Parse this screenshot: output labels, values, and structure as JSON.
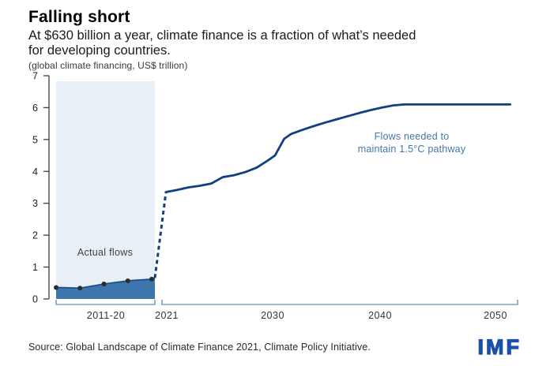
{
  "header": {
    "title": "Falling short",
    "subtitle": "At $630 billion a year, climate finance is a fraction of what’s needed for developing countries.",
    "units_note": "(global climate financing, US$ trillion)"
  },
  "labels": {
    "actual_flows": "Actual flows",
    "needed_line1": "Flows needed to",
    "needed_line2": "maintain 1.5°C pathway"
  },
  "footer": {
    "source": "Source: Global Landscape of Climate Finance 2021, Climate Policy Initiative.",
    "logo": "IMF"
  },
  "colors": {
    "band_blue": "#e9eff6",
    "fill_blue": "#3d75ad",
    "fill_edge": "#1f4f8a",
    "line_navy": "#12407f",
    "dot_dark": "#2d2d2d",
    "axis": "#3c3c3c",
    "tick_label": "#222222",
    "bracket_blue": "#78a2ca",
    "x_label": "#333333",
    "annotation_blue": "#4377ac",
    "logo_blue": "#1b50a8"
  },
  "chart_data": {
    "type": "line",
    "title": "Falling short",
    "ylabel": "global climate financing, US$ trillion",
    "ylim": [
      0,
      7
    ],
    "yticks": [
      0,
      1,
      2,
      3,
      4,
      5,
      6,
      7
    ],
    "xticks": [
      "2011-20",
      "2021",
      "2030",
      "2040",
      "2050"
    ],
    "grid": false,
    "legend_position": "none",
    "series": [
      {
        "name": "Actual flows",
        "style": "area-with-dots",
        "periods": [
          "2011-12",
          "2013-14",
          "2015-16",
          "2017-18",
          "2019-20",
          "2020"
        ],
        "values": [
          0.36,
          0.34,
          0.47,
          0.57,
          0.62,
          0.66
        ]
      },
      {
        "name": "Transition (dashed)",
        "style": "dashed",
        "points": [
          [
            2020.8,
            0.66
          ],
          [
            2021,
            3.35
          ]
        ]
      },
      {
        "name": "Flows needed to maintain 1.5°C pathway",
        "style": "solid",
        "points": [
          [
            2021,
            3.35
          ],
          [
            2022,
            3.42
          ],
          [
            2023,
            3.5
          ],
          [
            2024,
            3.55
          ],
          [
            2025,
            3.62
          ],
          [
            2026,
            3.82
          ],
          [
            2027,
            3.88
          ],
          [
            2028,
            3.98
          ],
          [
            2029,
            4.12
          ],
          [
            2030,
            4.35
          ],
          [
            2030.6,
            4.5
          ],
          [
            2031.4,
            5.02
          ],
          [
            2032,
            5.17
          ],
          [
            2033,
            5.3
          ],
          [
            2034,
            5.42
          ],
          [
            2035,
            5.53
          ],
          [
            2036,
            5.63
          ],
          [
            2037,
            5.73
          ],
          [
            2038,
            5.83
          ],
          [
            2039,
            5.92
          ],
          [
            2040,
            6.0
          ],
          [
            2041,
            6.07
          ],
          [
            2042,
            6.1
          ],
          [
            2051.3,
            6.1
          ]
        ]
      }
    ],
    "annotations": [
      {
        "text": "Actual flows",
        "color": "#3d4043"
      },
      {
        "text": "Flows needed to maintain 1.5°C pathway",
        "color": "#4377ac"
      }
    ]
  }
}
